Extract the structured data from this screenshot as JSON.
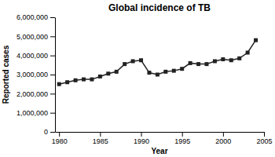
{
  "chart_data": {
    "type": "line",
    "title": "Global incidence of TB",
    "xlabel": "Year",
    "ylabel": "Reported cases",
    "x": [
      1980,
      1981,
      1982,
      1983,
      1984,
      1985,
      1986,
      1987,
      1988,
      1989,
      1990,
      1991,
      1992,
      1993,
      1994,
      1995,
      1996,
      1997,
      1998,
      1999,
      2000,
      2001,
      2002,
      2003,
      2004
    ],
    "values": [
      2500000,
      2600000,
      2700000,
      2750000,
      2750000,
      2900000,
      3050000,
      3150000,
      3550000,
      3700000,
      3750000,
      3100000,
      3000000,
      3150000,
      3200000,
      3300000,
      3600000,
      3550000,
      3550000,
      3700000,
      3800000,
      3750000,
      3850000,
      4150000,
      4800000
    ],
    "color": "#222222",
    "marker": "square",
    "xlim": [
      1979.5,
      2005
    ],
    "xticks": [
      1980,
      1985,
      1990,
      1995,
      2000,
      2005
    ],
    "ylim": [
      0,
      6000000
    ],
    "yticks": [
      0,
      {
        "value": 1000000,
        "label": "1,000,000"
      },
      {
        "value": 2000000,
        "label": "2,000,000"
      },
      {
        "value": 3000000,
        "label": "3,000,000"
      },
      {
        "value": 4000000,
        "label": "4,000,000"
      },
      {
        "value": 5000000,
        "label": "5,000,000"
      },
      {
        "value": 6000000,
        "label": "6,000,000"
      }
    ],
    "grid": false
  }
}
